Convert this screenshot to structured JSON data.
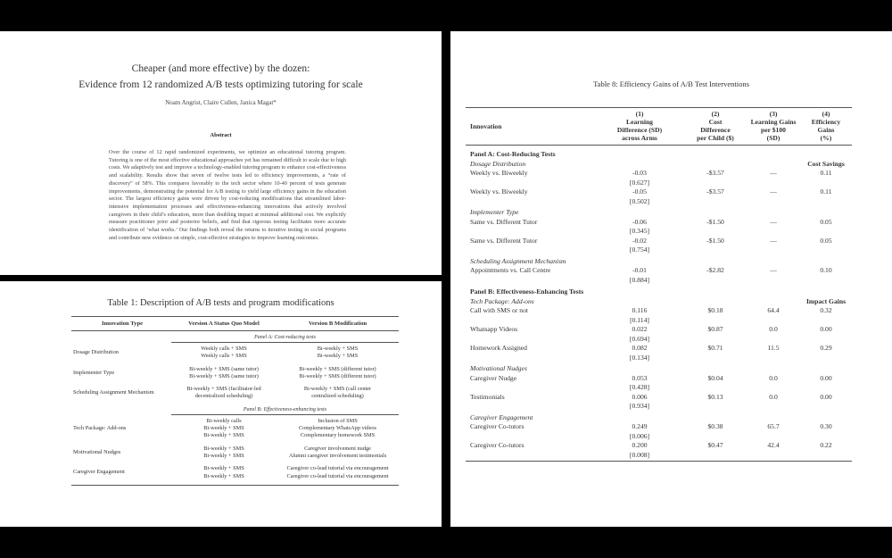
{
  "paper": {
    "title_line1": "Cheaper (and more effective) by the dozen:",
    "title_line2": "Evidence from 12 randomized A/B tests optimizing tutoring for scale",
    "authors": "Noam Angrist, Claire Cullen, Janica Magat*",
    "abstract_heading": "Abstract",
    "abstract": "Over the course of 12 rapid randomized experiments, we optimize an educational tutoring program. Tutoring is one of the most effective educational approaches yet has remained difficult to scale due to high costs. We adaptively test and improve a technology-enabled tutoring program to enhance cost-effectiveness and scalability. Results show that seven of twelve tests led to efficiency improvements, a “rate of discovery” of 58%. This compares favorably to the tech sector where 10-40 percent of tests generate improvements, demonstrating the potential for A/B testing to yield large efficiency gains in the education sector. The largest efficiency gains were driven by cost-reducing modifications that streamlined labor-intensive implementation processes and effectiveness-enhancing innovations that actively involved caregivers in their child’s education, more than doubling impact at minimal additional cost. We explicitly measure practitioner prior and posterior beliefs, and find that rigorous testing facilitates more accurate identification of ‘what works.’ Our findings both reveal the returns to iterative testing in social programs and contribute new evidence on simple, cost-effective strategies to improve learning outcomes."
  },
  "table1": {
    "title": "Table 1: Description of A/B tests and program modifications",
    "headers": [
      "Innovation Type",
      "Version A Status Quo Model",
      "Version B Modification"
    ],
    "panel_a": "Panel A: Cost-reducing tests",
    "panel_b": "Panel B: Effectiveness-enhancing tests",
    "rows_a": [
      {
        "type": "Dosage Distribution",
        "a": [
          "Weekly calls + SMS",
          "Weekly calls + SMS"
        ],
        "b": [
          "Bi-weekly + SMS",
          "Bi-weekly + SMS"
        ]
      },
      {
        "type": "Implementer Type",
        "a": [
          "Bi-weekly + SMS (same tutor)",
          "Bi-weekly + SMS (same tutor)"
        ],
        "b": [
          "Bi-weekly + SMS (different tutor)",
          "Bi-weekly + SMS (different tutor)"
        ]
      },
      {
        "type": "Scheduling Assignment Mechanism",
        "a": [
          "Bi-weekly + SMS (facilitator-led",
          "decentralized scheduling)"
        ],
        "b": [
          "Bi-weekly + SMS (call center",
          "centralized scheduling)"
        ]
      }
    ],
    "rows_b": [
      {
        "type": "Tech Package: Add-ons",
        "a": [
          "Bi-weekly calls",
          "Bi-weekly + SMS",
          "Bi-weekly + SMS"
        ],
        "b": [
          "Inclusion of SMS",
          "Complementary WhatsApp videos",
          "Complementary homework SMS"
        ]
      },
      {
        "type": "Motivational Nudges",
        "a": [
          "Bi-weekly + SMS",
          "Bi-weekly + SMS"
        ],
        "b": [
          "Caregiver involvement nudge",
          "Alumni caregiver involvement testimonials"
        ]
      },
      {
        "type": "Caregiver Engagement",
        "a": [
          "Bi-weekly + SMS",
          "Bi-weekly + SMS"
        ],
        "b": [
          "Caregiver co-lead tutorial via encouragement",
          "Caregiver co-lead tutorial via encouragement"
        ]
      }
    ]
  },
  "table8": {
    "title": "Table 8: Efficiency Gains of A/B Test Interventions",
    "headers": [
      [
        "Innovation"
      ],
      [
        "(1)",
        "Learning",
        "Difference (SD)",
        "across Arms"
      ],
      [
        "(2)",
        "Cost",
        "Difference",
        "per Child ($)"
      ],
      [
        "(3)",
        "Learning Gains",
        "per $100",
        "(SD)"
      ],
      [
        "(4)",
        "Efficiency",
        "Gains",
        "(%)"
      ]
    ],
    "lines": [
      {
        "kind": "panel",
        "label": "Panel A: Cost-Reducing Tests"
      },
      {
        "kind": "group",
        "label": "Dosage Distribution",
        "right": "Cost Savings"
      },
      {
        "kind": "row",
        "label": "Weekly vs. Biweekly",
        "v": [
          "-0.03",
          "-$3.57",
          "—",
          "0.11"
        ],
        "p": "[0.627]"
      },
      {
        "kind": "row",
        "label": "Weekly vs. Biweekly",
        "v": [
          "-0.05",
          "-$3.57",
          "—",
          "0.11"
        ],
        "p": "[0.502]"
      },
      {
        "kind": "group",
        "label": "Implementer Type"
      },
      {
        "kind": "row",
        "label": "Same vs. Different Tutor",
        "v": [
          "-0.06",
          "-$1.50",
          "—",
          "0.05"
        ],
        "p": "[0.345]"
      },
      {
        "kind": "row",
        "label": "Same vs. Different Tutor",
        "v": [
          "-0.02",
          "-$1.50",
          "—",
          "0.05"
        ],
        "p": "[0.754]"
      },
      {
        "kind": "group",
        "label": "Scheduling Assignment Mechanism"
      },
      {
        "kind": "row",
        "label": "Appointments vs. Call Centre",
        "v": [
          "-0.01",
          "-$2.82",
          "—",
          "0.10"
        ],
        "p": "[0.884]"
      },
      {
        "kind": "panel",
        "label": "Panel B: Effectiveness-Enhancing Tests"
      },
      {
        "kind": "group",
        "label": "Tech Package: Add-ons",
        "right": "Impact Gains"
      },
      {
        "kind": "row",
        "label": "Call with SMS or not",
        "v": [
          "0.116",
          "$0.18",
          "64.4",
          "0.32"
        ],
        "p": "[0.114]"
      },
      {
        "kind": "row",
        "label": "Whatsapp Videos",
        "v": [
          "0.022",
          "$0.87",
          "0.0",
          "0.00"
        ],
        "p": "[0.694]"
      },
      {
        "kind": "row",
        "label": "Homework Assigned",
        "v": [
          "0.082",
          "$0.71",
          "11.5",
          "0.29"
        ],
        "p": "[0.134]"
      },
      {
        "kind": "group",
        "label": "Motivational Nudges"
      },
      {
        "kind": "row",
        "label": "Caregiver Nudge",
        "v": [
          "0.053",
          "$0.04",
          "0.0",
          "0.00"
        ],
        "p": "[0.428]"
      },
      {
        "kind": "row",
        "label": "Testimonials",
        "v": [
          "0.006",
          "$0.13",
          "0.0",
          "0.00"
        ],
        "p": "[0.934]"
      },
      {
        "kind": "group",
        "label": "Caregiver Engagement"
      },
      {
        "kind": "row",
        "label": "Caregiver Co-tutors",
        "v": [
          "0.249",
          "$0.38",
          "65.7",
          "0.30"
        ],
        "p": "[0.006]"
      },
      {
        "kind": "row",
        "label": "Caregiver Co-tutors",
        "v": [
          "0.200",
          "$0.47",
          "42.4",
          "0.22"
        ],
        "p": "[0.008]"
      }
    ]
  }
}
